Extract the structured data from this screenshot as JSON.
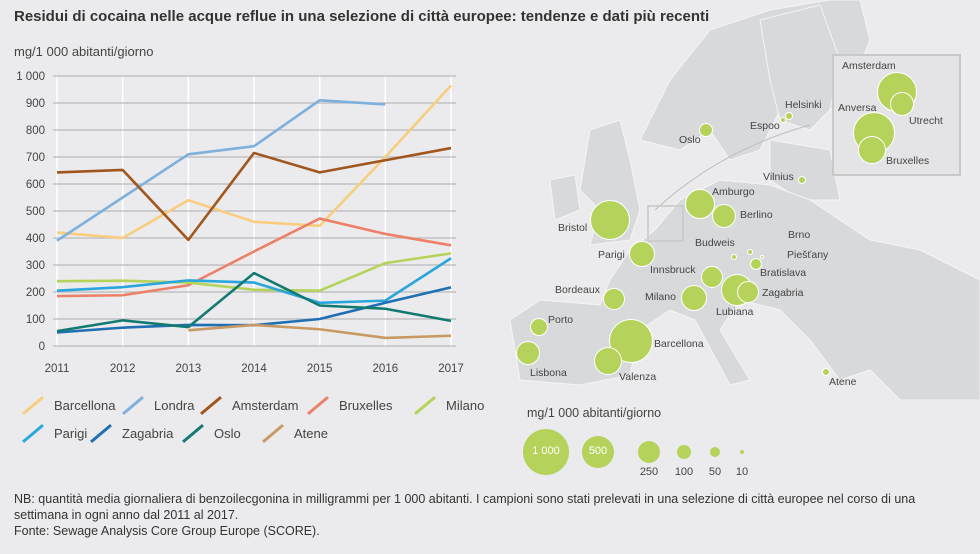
{
  "title": "Residui di cocaina nelle acque reflue in una selezione di città europee: tendenze e dati più recenti",
  "chart_data": {
    "type": "line",
    "ylabel": "mg/1 000 abitanti/giorno",
    "x": [
      "2011",
      "2012",
      "2013",
      "2014",
      "2015",
      "2016",
      "2017"
    ],
    "ylim": [
      0,
      1000
    ],
    "yticks": [
      "0",
      "100",
      "200",
      "300",
      "400",
      "500",
      "600",
      "700",
      "800",
      "900",
      "1 000"
    ],
    "grid": true,
    "legend_position": "bottom",
    "series": [
      {
        "name": "Barcellona",
        "color": "#f8cd7e",
        "values": [
          420,
          400,
          540,
          460,
          445,
          700,
          965
        ]
      },
      {
        "name": "Londra",
        "color": "#7eb0dc",
        "values": [
          390,
          550,
          710,
          740,
          910,
          895,
          null
        ]
      },
      {
        "name": "Amsterdam",
        "color": "#a0561c",
        "values": [
          643,
          652,
          393,
          715,
          643,
          688,
          733
        ]
      },
      {
        "name": "Bruxelles",
        "color": "#ec8068",
        "values": [
          185,
          188,
          225,
          350,
          472,
          415,
          373
        ]
      },
      {
        "name": "Milano",
        "color": "#b5d35a",
        "values": [
          240,
          242,
          235,
          208,
          205,
          307,
          343
        ]
      },
      {
        "name": "Parigi",
        "color": "#2aa6dc",
        "values": [
          205,
          218,
          243,
          235,
          160,
          168,
          325
        ]
      },
      {
        "name": "Zagabria",
        "color": "#1f6fb3",
        "values": [
          50,
          68,
          78,
          77,
          100,
          160,
          217
        ]
      },
      {
        "name": "Oslo",
        "color": "#137a72",
        "values": [
          55,
          95,
          70,
          270,
          150,
          138,
          93
        ]
      },
      {
        "name": "Atene",
        "color": "#c79a63",
        "values": [
          null,
          null,
          58,
          78,
          62,
          30,
          38
        ]
      }
    ]
  },
  "map": {
    "cities": [
      "Oslo",
      "Helsinki",
      "Espoo",
      "Vilnius",
      "Amsterdam",
      "Utrecht",
      "Anversa",
      "Bruxelles",
      "Amburgo",
      "Berlino",
      "Bristol",
      "Parigi",
      "Budweis",
      "Brno",
      "Piešťany",
      "Bratislava",
      "Innsbruck",
      "Lubiana",
      "Zagabria",
      "Milano",
      "Bordeaux",
      "Porto",
      "Lisbona",
      "Barcellona",
      "Valenza",
      "Atene"
    ],
    "legend_title": "mg/1 000 abitanti/giorno",
    "legend_sizes": [
      "1 000",
      "500",
      "250",
      "100",
      "50",
      "10"
    ],
    "bubble_color": "#b5d35a"
  },
  "footnote": {
    "note": "NB: quantità media giornaliera di benzoilecgonina in milligrammi per 1 000 abitanti. I campioni sono stati prelevati in una selezione di città europee nel corso di una settimana in ogni anno dal 2011 al 2017.",
    "source": "Fonte: Sewage Analysis Core Group Europe (SCORE)."
  }
}
